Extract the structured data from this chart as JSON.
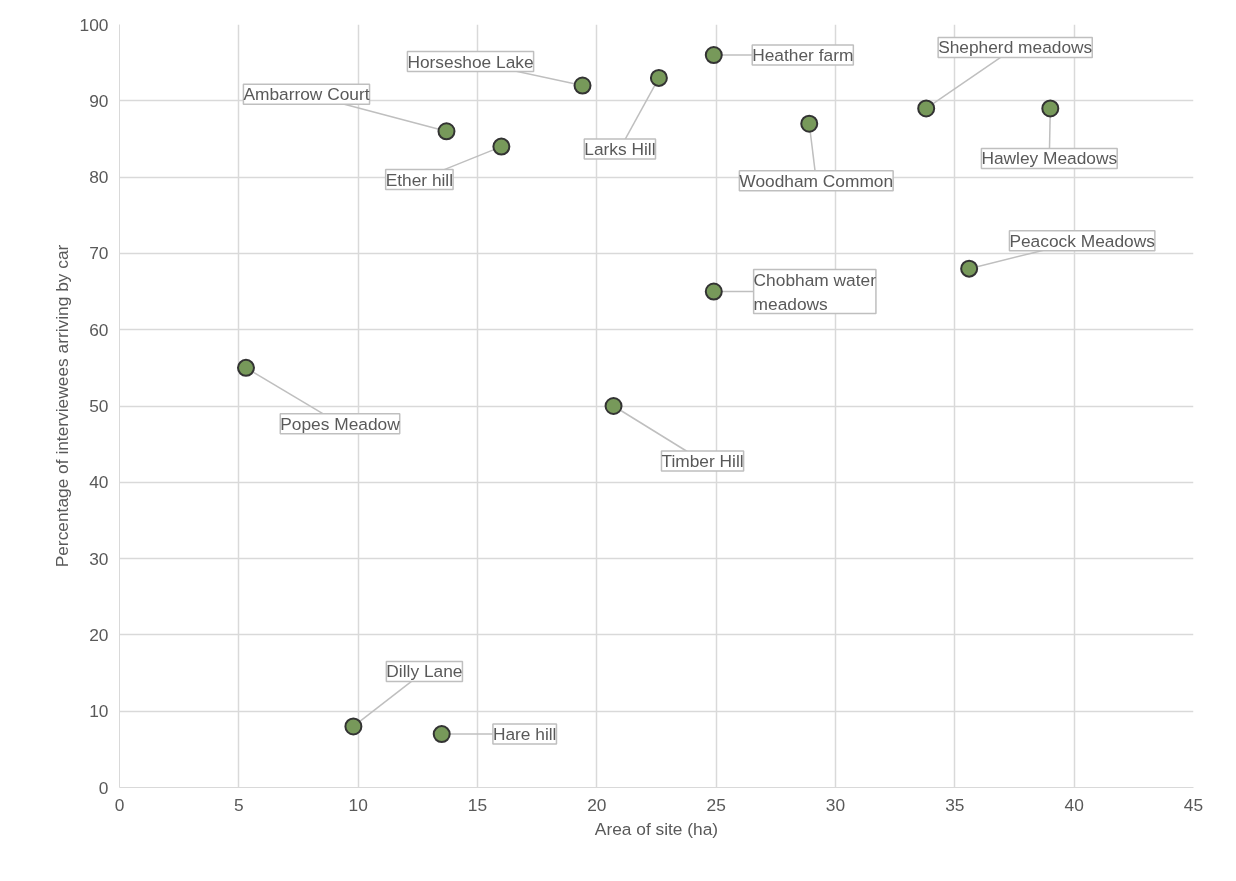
{
  "chart_data": {
    "type": "scatter",
    "xlabel": "Area of site (ha)",
    "ylabel": "Percentage of interviewees arriving by car",
    "x": [
      5.3,
      9.8,
      13.5,
      13.7,
      16.0,
      19.4,
      22.6,
      20.7,
      24.9,
      24.9,
      28.9,
      33.8,
      39.0,
      35.6
    ],
    "series": [
      {
        "color": "#77995a",
        "values": [
          55,
          8,
          7,
          86,
          84,
          92,
          93,
          50,
          96,
          65,
          87,
          89,
          89,
          68
        ]
      }
    ],
    "annotations": [
      {
        "text": "Popes Meadow",
        "x": 5.3,
        "y": 55
      },
      {
        "text": "Dilly Lane",
        "x": 9.8,
        "y": 8
      },
      {
        "text": "Hare hill",
        "x": 13.5,
        "y": 7
      },
      {
        "text": "Ambarrow Court",
        "x": 13.7,
        "y": 86
      },
      {
        "text": "Ether hill",
        "x": 16.0,
        "y": 84
      },
      {
        "text": "Horseshoe Lake",
        "x": 19.4,
        "y": 92
      },
      {
        "text": "Larks Hill",
        "x": 22.6,
        "y": 93
      },
      {
        "text": "Timber Hill",
        "x": 20.7,
        "y": 50
      },
      {
        "text": "Heather farm",
        "x": 24.9,
        "y": 96
      },
      {
        "text": "Chobham water meadows",
        "x": 24.9,
        "y": 65
      },
      {
        "text": "Woodham Common",
        "x": 28.9,
        "y": 87
      },
      {
        "text": "Shepherd meadows",
        "x": 33.8,
        "y": 89
      },
      {
        "text": "Hawley Meadows",
        "x": 39.0,
        "y": 89
      },
      {
        "text": "Peacock Meadows",
        "x": 35.6,
        "y": 68
      }
    ],
    "xlim": [
      0,
      45
    ],
    "ylim": [
      0,
      100
    ],
    "xticks": [
      0,
      5,
      10,
      15,
      20,
      25,
      30,
      35,
      40,
      45
    ],
    "yticks": [
      0,
      10,
      20,
      30,
      40,
      50,
      60,
      70,
      80,
      90,
      100
    ],
    "grid": true,
    "marker": "circle"
  }
}
